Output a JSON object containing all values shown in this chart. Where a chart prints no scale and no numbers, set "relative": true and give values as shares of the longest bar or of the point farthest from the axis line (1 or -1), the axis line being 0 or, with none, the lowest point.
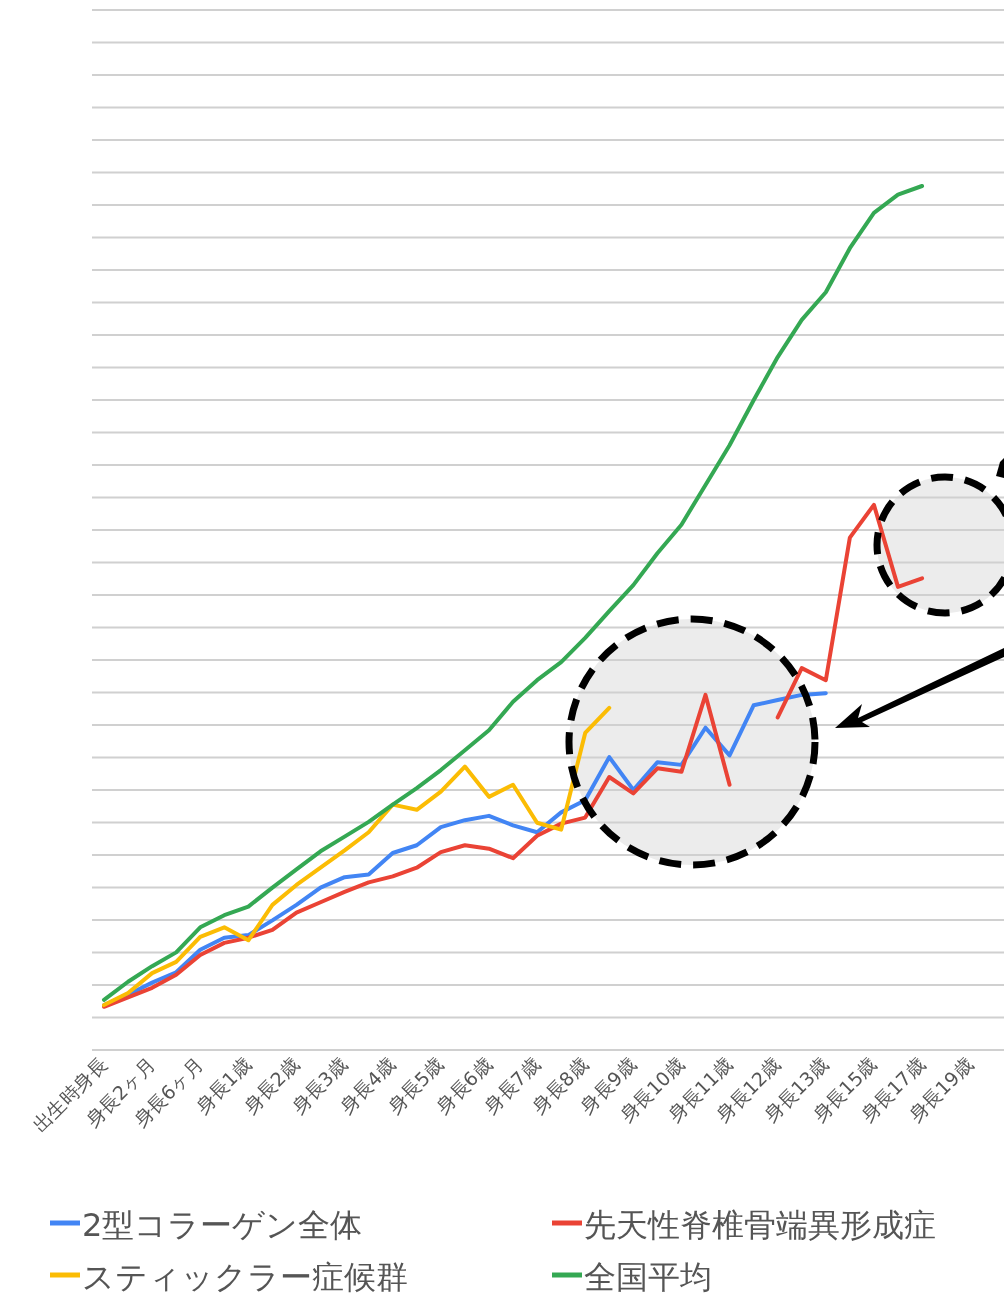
{
  "chart_data": {
    "type": "line",
    "relative": true,
    "grid": "y",
    "legend": "bottom",
    "categories": [
      "出生時身長",
      null,
      "身長2ヶ月",
      null,
      "身長6ヶ月",
      null,
      "身長1歳",
      null,
      "身長2歳",
      null,
      "身長3歳",
      null,
      "身長4歳",
      null,
      "身長5歳",
      null,
      "身長6歳",
      null,
      "身長7歳",
      null,
      "身長8歳",
      null,
      "身長9歳",
      null,
      "身長10歳",
      null,
      "身長11歳",
      null,
      "身長12歳",
      null,
      "身長13歳",
      null,
      "身長15歳",
      null,
      "身長17歳",
      null,
      "身長19歳"
    ],
    "series": [
      {
        "name": "2型コラーゲン全体",
        "color": "#4285f4",
        "values": [
          0.052,
          0.064,
          0.078,
          0.09,
          0.116,
          0.13,
          0.133,
          0.15,
          0.168,
          0.188,
          0.2,
          0.203,
          0.228,
          0.237,
          0.258,
          0.266,
          0.271,
          0.26,
          0.252,
          0.275,
          0.289,
          0.339,
          0.301,
          0.333,
          0.33,
          0.373,
          0.341,
          0.399,
          0.405,
          0.411,
          0.413,
          null,
          null,
          null,
          null,
          null,
          null
        ]
      },
      {
        "name": "先天性脊椎骨端異形成症",
        "color": "#ea4335",
        "values": [
          0.05,
          0.061,
          0.072,
          0.087,
          0.11,
          0.124,
          0.13,
          0.139,
          0.159,
          0.171,
          0.183,
          0.194,
          0.201,
          0.211,
          0.229,
          0.237,
          0.233,
          0.222,
          0.248,
          0.262,
          0.269,
          0.316,
          0.297,
          0.326,
          0.322,
          0.411,
          0.307,
          null,
          0.385,
          0.442,
          0.428,
          0.593,
          0.631,
          0.536,
          0.546,
          null,
          null
        ]
      },
      {
        "name": "スティックラー症候群",
        "color": "#fbbc04",
        "values": [
          0.052,
          0.066,
          0.089,
          0.102,
          0.131,
          0.142,
          0.127,
          0.168,
          0.191,
          0.211,
          0.231,
          0.252,
          0.284,
          0.278,
          0.299,
          0.328,
          0.293,
          0.307,
          0.263,
          0.255,
          0.367,
          0.396,
          null,
          null,
          null,
          null,
          null,
          null,
          null,
          null,
          null,
          null,
          null,
          null,
          null,
          null,
          null
        ]
      },
      {
        "name": "全国平均",
        "color": "#34a853",
        "values": [
          0.058,
          0.079,
          0.097,
          0.113,
          0.142,
          0.156,
          0.166,
          0.188,
          0.209,
          0.23,
          0.247,
          0.264,
          0.284,
          0.303,
          0.324,
          0.347,
          0.37,
          0.403,
          0.428,
          0.449,
          0.477,
          0.508,
          0.538,
          0.575,
          0.608,
          0.654,
          0.7,
          0.752,
          0.802,
          0.845,
          0.877,
          0.928,
          0.969,
          0.99,
          1.0,
          null,
          null
        ]
      }
    ]
  }
}
